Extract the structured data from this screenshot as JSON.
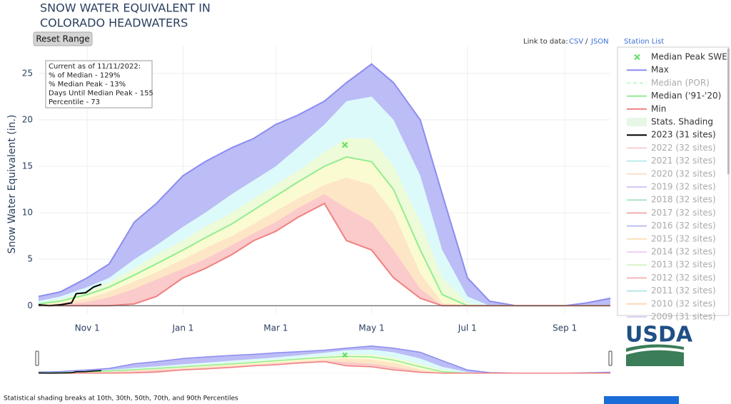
{
  "chart_data": {
    "type": "area",
    "title": [
      "SNOW WATER EQUIVALENT IN",
      "COLORADO HEADWATERS"
    ],
    "reset_button": "Reset Range",
    "link_label": "Link to data:",
    "links": [
      "CSV",
      "JSON"
    ],
    "station_list": "Station List",
    "annotation": [
      "Current as of 11/11/2022:",
      "% of Median - 129%",
      "% Median Peak - 13%",
      "Days Until Median Peak - 155",
      "Percentile - 73"
    ],
    "ylabel": "Snow Water Equivalent (in.)",
    "footnote": "Statistical shading breaks at 10th, 30th, 50th, 70th, and 90th Percentiles",
    "logo": "USDA",
    "x": [
      0,
      14,
      31,
      45,
      61,
      75,
      92,
      106,
      123,
      137,
      151,
      165,
      182,
      196,
      212,
      226,
      243,
      257,
      273,
      287,
      304,
      318,
      335,
      349,
      364
    ],
    "xlim": [
      0,
      364
    ],
    "xticks": [
      {
        "value": 31,
        "label": "Nov 1"
      },
      {
        "value": 92,
        "label": "Jan 1"
      },
      {
        "value": 151,
        "label": "Mar 1"
      },
      {
        "value": 212,
        "label": "May 1"
      },
      {
        "value": 273,
        "label": "Jul 1"
      },
      {
        "value": 335,
        "label": "Sep 1"
      }
    ],
    "ylim": [
      -0.9,
      27.9
    ],
    "yticks": [
      0,
      5,
      10,
      15,
      20,
      25
    ],
    "grid": true,
    "shading": {
      "name": "Stats. Shading",
      "color": "#e6f7e6",
      "bands": [
        {
          "color": "#dcfafa",
          "values": [
            0.5,
            1,
            2,
            3,
            5,
            6.5,
            8.5,
            10,
            12,
            13.5,
            15,
            17,
            19.5,
            22,
            22.5,
            20,
            14,
            6,
            1,
            0,
            0,
            0,
            0,
            0,
            0
          ]
        },
        {
          "color": "#eefbd8",
          "values": [
            0.3,
            0.7,
            1.5,
            2.5,
            4,
            5.5,
            7,
            8.5,
            10,
            11.5,
            13,
            14.5,
            16.5,
            18,
            18,
            15,
            9,
            3,
            0.3,
            0,
            0,
            0,
            0,
            0,
            0
          ]
        },
        {
          "color": "#fbfbd2",
          "values": [
            0.2,
            0.5,
            1.2,
            2,
            3.3,
            4.5,
            6,
            7.3,
            8.8,
            10.3,
            11.8,
            13.3,
            15,
            16,
            15.5,
            12.5,
            6,
            1.2,
            0,
            0,
            0,
            0,
            0,
            0,
            0
          ]
        },
        {
          "color": "#fde6c6",
          "values": [
            0.1,
            0.3,
            0.8,
            1.5,
            2.6,
            3.6,
            5,
            6.2,
            7.5,
            8.8,
            10.2,
            11.5,
            13,
            13.8,
            13,
            10,
            3.5,
            0.3,
            0,
            0,
            0,
            0,
            0,
            0,
            0
          ]
        },
        {
          "color": "#fbcaca",
          "values": [
            0,
            0.1,
            0.4,
            0.9,
            1.8,
            2.8,
            4,
            5,
            6.5,
            7.8,
            9,
            10.5,
            12,
            10.5,
            9,
            6,
            1.8,
            0,
            0,
            0,
            0,
            0,
            0,
            0,
            0
          ]
        }
      ]
    },
    "peak": {
      "name": "Median Peak SWE",
      "color": "#66e066",
      "x": 195,
      "y": 17.3
    },
    "series": [
      {
        "name": "Max",
        "color": "#8c8cf0",
        "fill": "#bcbcf6",
        "values": [
          1,
          1.5,
          3,
          4.5,
          9,
          11,
          14,
          15.5,
          17,
          18,
          19.5,
          20.5,
          22,
          24,
          26,
          24,
          20,
          12,
          3,
          0.5,
          0,
          0,
          0,
          0.3,
          0.8
        ]
      },
      {
        "name": "Median ('91-'20)",
        "color": "#90ee90",
        "values": [
          0.2,
          0.5,
          1.2,
          2,
          3.3,
          4.5,
          6,
          7.3,
          8.8,
          10.3,
          11.8,
          13.3,
          15,
          16,
          15.5,
          12.5,
          6,
          1.2,
          0,
          0,
          0,
          0,
          0,
          0,
          0
        ]
      },
      {
        "name": "Min",
        "color": "#f08080",
        "fill": "#ffffff",
        "values": [
          0,
          0,
          0,
          0,
          0.2,
          1,
          3,
          4,
          5.5,
          7,
          8,
          9.5,
          11,
          7,
          6,
          3,
          0.8,
          0,
          0,
          0,
          0,
          0,
          0,
          0,
          0
        ]
      },
      {
        "name": "2023 (31 sites)",
        "color": "#000000",
        "x": [
          0,
          7,
          14,
          21,
          24,
          30,
          35,
          40
        ],
        "values": [
          0.1,
          0,
          0.1,
          0.3,
          1.3,
          1.4,
          2,
          2.3
        ]
      }
    ],
    "legend_only": [
      {
        "name": "Median (POR)",
        "color": "#90ee90",
        "dash": true
      },
      {
        "name": "2022 (32 sites)",
        "color": "#f4a0a0"
      },
      {
        "name": "2021 (32 sites)",
        "color": "#7fd8d8"
      },
      {
        "name": "2020 (32 sites)",
        "color": "#f8c090"
      },
      {
        "name": "2019 (32 sites)",
        "color": "#b090f0"
      },
      {
        "name": "2018 (32 sites)",
        "color": "#60c890"
      },
      {
        "name": "2017 (32 sites)",
        "color": "#e06060"
      },
      {
        "name": "2016 (32 sites)",
        "color": "#8080e0"
      },
      {
        "name": "2015 (32 sites)",
        "color": "#f8c070"
      },
      {
        "name": "2014 (32 sites)",
        "color": "#e8a0f0"
      },
      {
        "name": "2013 (32 sites)",
        "color": "#b0e890"
      },
      {
        "name": "2012 (32 sites)",
        "color": "#f07070"
      },
      {
        "name": "2011 (32 sites)",
        "color": "#70d0d0"
      },
      {
        "name": "2010 (32 sites)",
        "color": "#f8b070"
      },
      {
        "name": "2009 (31 sites)",
        "color": "#c0a0f0"
      }
    ]
  }
}
